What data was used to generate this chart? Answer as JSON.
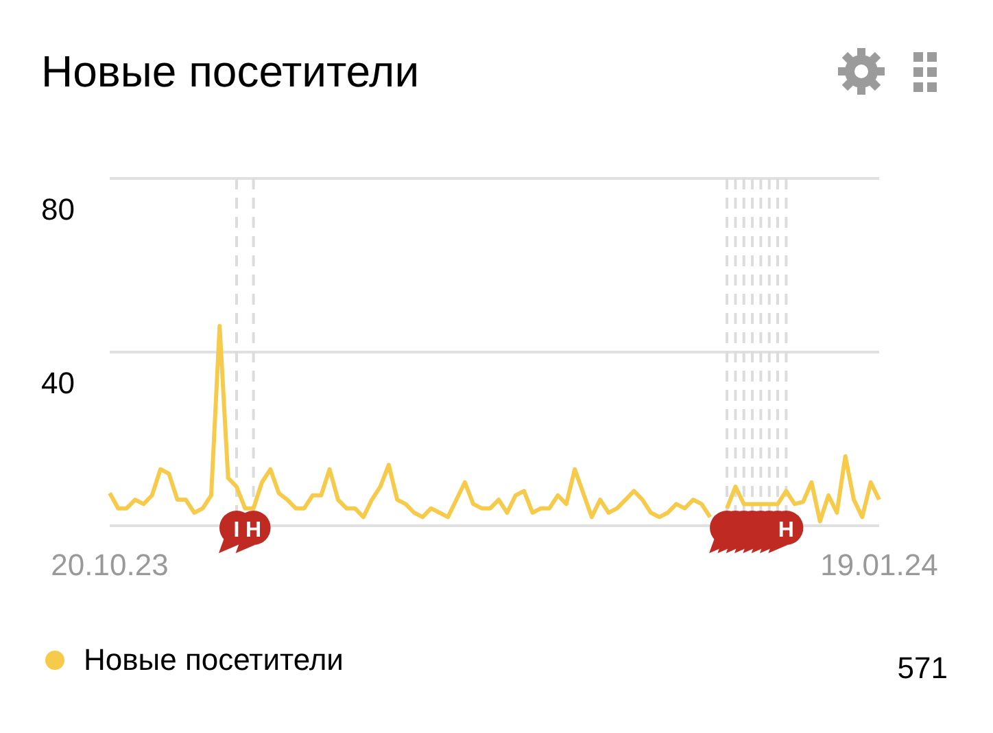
{
  "chart_data": {
    "type": "line",
    "title": "Новые посетители",
    "x": [
      "2023-10-20",
      "2023-10-21",
      "2023-10-22",
      "2023-10-23",
      "2023-10-24",
      "2023-10-25",
      "2023-10-26",
      "2023-10-27",
      "2023-10-28",
      "2023-10-29",
      "2023-10-30",
      "2023-10-31",
      "2023-11-01",
      "2023-11-02",
      "2023-11-03",
      "2023-11-04",
      "2023-11-05",
      "2023-11-06",
      "2023-11-07",
      "2023-11-08",
      "2023-11-09",
      "2023-11-10",
      "2023-11-11",
      "2023-11-12",
      "2023-11-13",
      "2023-11-14",
      "2023-11-15",
      "2023-11-16",
      "2023-11-17",
      "2023-11-18",
      "2023-11-19",
      "2023-11-20",
      "2023-11-21",
      "2023-11-22",
      "2023-11-23",
      "2023-11-24",
      "2023-11-25",
      "2023-11-26",
      "2023-11-27",
      "2023-11-28",
      "2023-11-29",
      "2023-11-30",
      "2023-12-01",
      "2023-12-02",
      "2023-12-03",
      "2023-12-04",
      "2023-12-05",
      "2023-12-06",
      "2023-12-07",
      "2023-12-08",
      "2023-12-09",
      "2023-12-10",
      "2023-12-11",
      "2023-12-12",
      "2023-12-13",
      "2023-12-14",
      "2023-12-15",
      "2023-12-16",
      "2023-12-17",
      "2023-12-18",
      "2023-12-19",
      "2023-12-20",
      "2023-12-21",
      "2023-12-22",
      "2023-12-23",
      "2023-12-24",
      "2023-12-25",
      "2023-12-26",
      "2023-12-27",
      "2023-12-28",
      "2023-12-29",
      "2023-12-30",
      "2023-12-31",
      "2024-01-01",
      "2024-01-02",
      "2024-01-03",
      "2024-01-04",
      "2024-01-05",
      "2024-01-06",
      "2024-01-07",
      "2024-01-08",
      "2024-01-09",
      "2024-01-10",
      "2024-01-11",
      "2024-01-12",
      "2024-01-13",
      "2024-01-14",
      "2024-01-15",
      "2024-01-16",
      "2024-01-17",
      "2024-01-18",
      "2024-01-19"
    ],
    "series": [
      {
        "name": "Новые посетители",
        "color": "#f6cb4b",
        "values": [
          7.5,
          4,
          4,
          6,
          5,
          7,
          13,
          12,
          6,
          6,
          3,
          4,
          7,
          46,
          11,
          9,
          4,
          4,
          10,
          13,
          7.5,
          6,
          4,
          4,
          7,
          7,
          13,
          6,
          4,
          4,
          2,
          6,
          9,
          14,
          6,
          5,
          3,
          2,
          4,
          3,
          2,
          6,
          10,
          5,
          4,
          4,
          6,
          3,
          7,
          8,
          3,
          4,
          4,
          7,
          5,
          13,
          7.5,
          2,
          6,
          3,
          4,
          6,
          8,
          6,
          3,
          2,
          3,
          5,
          4,
          6,
          5,
          2,
          null,
          4,
          9,
          5,
          5,
          5,
          5,
          5,
          8,
          5,
          5.5,
          10,
          1,
          7,
          3,
          16,
          6,
          2,
          10,
          6
        ]
      }
    ],
    "xlim": [
      "2023-10-20",
      "2024-01-19"
    ],
    "xticks": [
      {
        "value": "2023-10-20",
        "label": "20.10.23"
      },
      {
        "value": "2024-01-19",
        "label": "19.01.24"
      }
    ],
    "ylim": [
      0,
      80
    ],
    "yticks": [
      {
        "value": 0,
        "label": null
      },
      40,
      80
    ],
    "grid": "y",
    "legend": "bottom",
    "line_style": "solid",
    "marker": "none",
    "ref_lines": [
      {
        "axis": "x",
        "value": "2023-11-04",
        "label": "I",
        "line_style": "dashed"
      },
      {
        "axis": "x",
        "value": "2023-11-06",
        "label": "Н",
        "line_style": "dashed"
      },
      {
        "axis": "x",
        "value": "2024-01-01",
        "label": null,
        "line_style": "dashed"
      },
      {
        "axis": "x",
        "value": "2024-01-02",
        "label": null,
        "line_style": "dashed"
      },
      {
        "axis": "x",
        "value": "2024-01-03",
        "label": null,
        "line_style": "dashed"
      },
      {
        "axis": "x",
        "value": "2024-01-04",
        "label": null,
        "line_style": "dashed"
      },
      {
        "axis": "x",
        "value": "2024-01-05",
        "label": null,
        "line_style": "dashed"
      },
      {
        "axis": "x",
        "value": "2024-01-06",
        "label": null,
        "line_style": "dashed"
      },
      {
        "axis": "x",
        "value": "2024-01-07",
        "label": null,
        "line_style": "dashed"
      },
      {
        "axis": "x",
        "value": "2024-01-08",
        "label": "Н",
        "line_style": "dashed"
      }
    ],
    "annotations": [
      "571"
    ]
  }
}
